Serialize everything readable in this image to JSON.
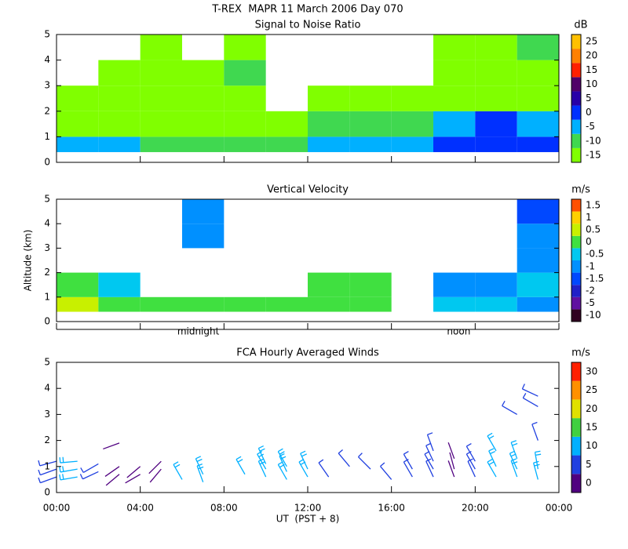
{
  "title": "T-REX  MAPR 11 March 2006 Day 070",
  "chart_data": [
    {
      "type": "heatmap",
      "title": "Signal to Noise Ratio",
      "x_bins": [
        0,
        2,
        4,
        6,
        8,
        10,
        12,
        14,
        16,
        18,
        20,
        22,
        24
      ],
      "y_bins": [
        0.4,
        1,
        2,
        3,
        4,
        5
      ],
      "values": [
        [
          -5,
          -5,
          -8,
          -8,
          -8,
          -8,
          -5,
          -5,
          -3,
          3,
          3,
          0
        ],
        [
          -12,
          -12,
          -13,
          -12,
          -13,
          -12,
          -10,
          -10,
          -10,
          -3,
          0,
          -5
        ],
        [
          -15,
          -16,
          -14,
          -15,
          -15,
          null,
          -15,
          -15,
          -16,
          -12,
          -12,
          -13
        ],
        [
          null,
          -16,
          -15,
          -15,
          -10,
          null,
          null,
          null,
          null,
          -15,
          -15,
          -12
        ],
        [
          null,
          null,
          -15,
          null,
          -12,
          null,
          null,
          null,
          null,
          -16,
          -15,
          -10
        ]
      ],
      "xlim": [
        0,
        24
      ],
      "ylim": [
        0,
        5
      ],
      "yticks": [
        0,
        1,
        2,
        3,
        4,
        5
      ],
      "colorbar": {
        "label": "dB",
        "levels": [
          -15,
          -10,
          -5,
          0,
          5,
          10,
          15,
          20,
          25
        ],
        "colors": [
          "#80ff00",
          "#40d850",
          "#00b0ff",
          "#0030ff",
          "#2800a8",
          "#500068",
          "#ff2000",
          "#ff8000",
          "#ffc000"
        ]
      }
    },
    {
      "type": "heatmap",
      "title": "Vertical Velocity",
      "ylabel": "Altitude (km)",
      "x_bins": [
        0,
        2,
        4,
        6,
        8,
        10,
        12,
        14,
        16,
        18,
        20,
        22,
        24
      ],
      "y_bins": [
        0.4,
        1,
        2,
        3,
        4,
        5
      ],
      "values": [
        [
          0.5,
          0,
          0,
          0,
          0,
          0,
          0,
          0,
          null,
          -0.5,
          -0.5,
          -1
        ],
        [
          0,
          -0.5,
          null,
          null,
          null,
          null,
          0,
          0,
          null,
          -1,
          -1,
          -0.5
        ],
        [
          null,
          null,
          null,
          null,
          null,
          null,
          null,
          null,
          null,
          null,
          null,
          -1
        ],
        [
          null,
          null,
          null,
          -1,
          null,
          null,
          null,
          null,
          null,
          null,
          null,
          -1
        ],
        [
          null,
          null,
          null,
          -1,
          null,
          null,
          null,
          null,
          null,
          null,
          null,
          -1.5
        ]
      ],
      "xlim": [
        0,
        24
      ],
      "ylim": [
        0,
        5
      ],
      "yticks": [
        0,
        1,
        2,
        3,
        4,
        5
      ],
      "annotations": [
        {
          "text": "midnight",
          "x": 8
        },
        {
          "text": "noon",
          "x": 20
        }
      ],
      "colorbar": {
        "label": "m/s",
        "levels": [
          -10,
          -5,
          -2,
          -1.5,
          -1,
          -0.5,
          0,
          0.5,
          1,
          1.5
        ],
        "colors": [
          "#300020",
          "#6010a0",
          "#2020c8",
          "#0048ff",
          "#0090ff",
          "#00c8f0",
          "#40e040",
          "#c8f000",
          "#ffd000",
          "#ff5000"
        ]
      }
    },
    {
      "type": "barbs",
      "title": "FCA Hourly Averaged Winds",
      "xlabel": "UT  (PST + 8)",
      "x": [
        0,
        0,
        0,
        1,
        1,
        1,
        2,
        2,
        3,
        3,
        3,
        4,
        4,
        5,
        5,
        6,
        7,
        7,
        9,
        10,
        10,
        10,
        11,
        11,
        11,
        12,
        12,
        13,
        14,
        15,
        16,
        17,
        17,
        18,
        18,
        18,
        18,
        19,
        19,
        19,
        20,
        20,
        20,
        21,
        21,
        21,
        22,
        22,
        22,
        22,
        23,
        23,
        23,
        23,
        23
      ],
      "y": [
        0.6,
        0.9,
        1.2,
        0.6,
        0.9,
        1.2,
        0.8,
        1.1,
        0.7,
        1.0,
        1.9,
        0.7,
        1.0,
        0.9,
        1.2,
        0.5,
        0.4,
        0.7,
        0.7,
        0.6,
        0.9,
        1.1,
        0.5,
        0.8,
        1.0,
        0.6,
        0.9,
        0.6,
        1.0,
        0.9,
        0.5,
        0.6,
        0.9,
        0.6,
        0.9,
        1.2,
        1.6,
        0.6,
        0.9,
        1.3,
        0.6,
        0.9,
        1.2,
        0.6,
        1.0,
        1.6,
        0.6,
        0.9,
        1.3,
        3.0,
        0.5,
        0.9,
        2.0,
        3.3,
        3.7
      ],
      "speed": [
        8,
        8,
        8,
        13,
        13,
        13,
        5,
        5,
        3,
        3,
        2,
        3,
        3,
        2,
        2,
        12,
        12,
        12,
        12,
        14,
        14,
        14,
        13,
        13,
        13,
        13,
        13,
        9,
        9,
        5,
        8,
        6,
        6,
        6,
        6,
        6,
        6,
        3,
        3,
        3,
        8,
        8,
        8,
        10,
        10,
        10,
        12,
        12,
        12,
        8,
        14,
        14,
        6,
        6,
        6
      ],
      "direction": [
        250,
        250,
        255,
        260,
        260,
        265,
        245,
        240,
        230,
        235,
        250,
        240,
        230,
        220,
        225,
        330,
        340,
        335,
        330,
        335,
        330,
        335,
        330,
        335,
        330,
        330,
        335,
        325,
        320,
        315,
        320,
        330,
        330,
        335,
        330,
        335,
        340,
        340,
        345,
        340,
        335,
        330,
        330,
        330,
        335,
        330,
        340,
        335,
        340,
        300,
        345,
        350,
        340,
        300,
        295
      ],
      "xlim": [
        0,
        24
      ],
      "ylim": [
        0,
        5
      ],
      "yticks": [
        0,
        1,
        2,
        3,
        4,
        5
      ],
      "xticks": [
        {
          "value": 0,
          "label": "00:00"
        },
        {
          "value": 4,
          "label": "04:00"
        },
        {
          "value": 8,
          "label": "08:00"
        },
        {
          "value": 12,
          "label": "12:00"
        },
        {
          "value": 16,
          "label": "16:00"
        },
        {
          "value": 20,
          "label": "20:00"
        },
        {
          "value": 24,
          "label": "00:00"
        }
      ],
      "colorbar": {
        "label": "m/s",
        "levels": [
          0,
          5,
          10,
          15,
          20,
          25,
          30
        ],
        "colors": [
          "#500080",
          "#2040e0",
          "#00b0ff",
          "#40d040",
          "#e0e000",
          "#ff9000",
          "#ff2000"
        ]
      }
    }
  ]
}
